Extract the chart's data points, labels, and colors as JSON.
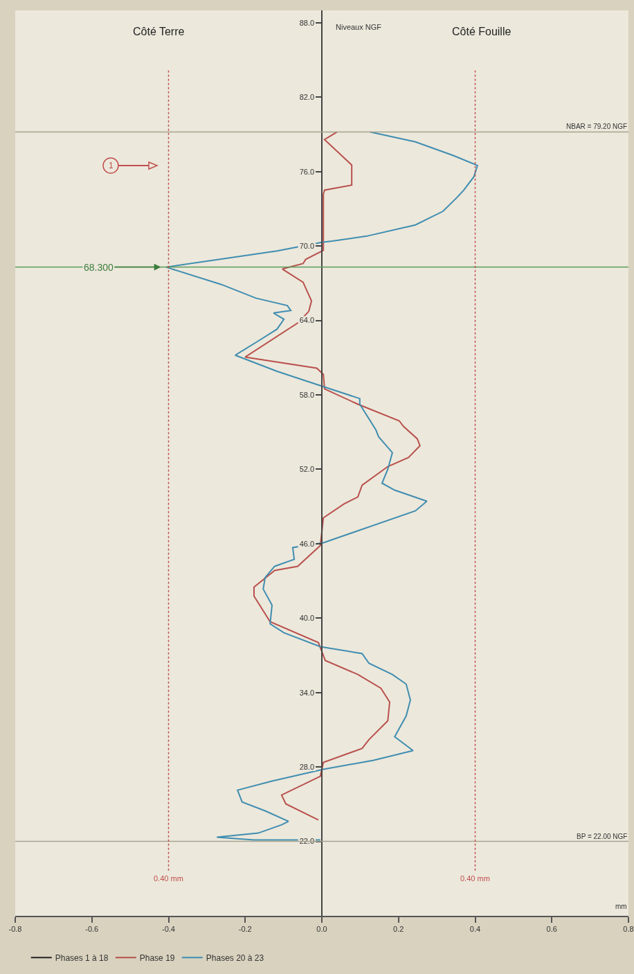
{
  "chart_data": {
    "type": "line",
    "xlabel": "mm",
    "ylabel": "Niveaux NGF",
    "xlim": [
      -0.8,
      0.8
    ],
    "ylim": [
      16,
      89
    ],
    "xticks": [
      -0.8,
      -0.6,
      -0.4,
      -0.2,
      {
        "value": 0,
        "label": "0.0"
      },
      0.2,
      0.4,
      0.6,
      0.8
    ],
    "yticks": [
      {
        "value": 22,
        "label": "22.0"
      },
      {
        "value": 28,
        "label": "28.0"
      },
      {
        "value": 34,
        "label": "34.0"
      },
      {
        "value": 40,
        "label": "40.0"
      },
      {
        "value": 46,
        "label": "46.0"
      },
      {
        "value": 52,
        "label": "52.0"
      },
      {
        "value": 58,
        "label": "58.0"
      },
      {
        "value": 64,
        "label": "64.0"
      },
      {
        "value": 70,
        "label": "70.0"
      },
      {
        "value": 76,
        "label": "76.0"
      },
      {
        "value": 82,
        "label": "82.0"
      },
      {
        "value": 88,
        "label": "88.0"
      }
    ],
    "grid": false,
    "legend": "bottom",
    "marker": "none",
    "line_style": "solid",
    "series": [
      {
        "name": "Phases 1 à 18",
        "color": "#222222"
      },
      {
        "name": "Phase 19",
        "color": "#b9504c",
        "x": [
          0.04,
          0.007,
          0.078,
          0.078,
          0.007,
          0.004,
          0.004,
          -0.042,
          -0.049,
          -0.103,
          -0.049,
          -0.027,
          -0.034,
          -0.061,
          -0.2,
          -0.013,
          0.004,
          0.007,
          0.094,
          0.202,
          0.213,
          0.249,
          0.256,
          0.226,
          0.172,
          0.105,
          0.094,
          0.058,
          0.004,
          -0.004,
          -0.063,
          -0.123,
          -0.177,
          -0.177,
          -0.135,
          -0.009,
          0.009,
          0.094,
          0.154,
          0.177,
          0.172,
          0.123,
          0.105,
          0.004,
          -0.004,
          -0.105,
          -0.094,
          -0.009
        ],
        "values": [
          79.21,
          78.59,
          76.53,
          74.91,
          74.51,
          74.18,
          69.65,
          68.93,
          68.59,
          68.15,
          67.08,
          65.58,
          64.74,
          63.84,
          61.05,
          60.15,
          59.65,
          58.48,
          57.25,
          55.91,
          55.46,
          54.46,
          53.9,
          52.95,
          52.22,
          50.72,
          49.77,
          49.21,
          48.09,
          45.85,
          44.18,
          43.84,
          42.5,
          41.78,
          39.71,
          38.03,
          36.58,
          35.46,
          34.35,
          33.23,
          31.72,
          30.21,
          29.49,
          28.37,
          27.25,
          25.74,
          25.02,
          23.73
        ]
      },
      {
        "name": "Phases 20 à 23",
        "color": "#3f8db0",
        "x": [
          0.126,
          0.244,
          0.343,
          0.406,
          0.397,
          0.37,
          0.352,
          0.316,
          0.244,
          0.117,
          0.027,
          0,
          -0.117,
          -0.406,
          -0.262,
          -0.172,
          -0.09,
          -0.081,
          -0.126,
          -0.099,
          -0.117,
          -0.163,
          -0.226,
          -0.117,
          -0.009,
          0.099,
          0.099,
          0.141,
          0.148,
          0.184,
          0.172,
          0.157,
          0.19,
          0.274,
          0.244,
          0.004,
          -0.076,
          -0.072,
          -0.123,
          -0.148,
          -0.153,
          -0.13,
          -0.135,
          -0.099,
          -0.004,
          0.105,
          0.123,
          0.184,
          0.22,
          0.231,
          0.22,
          0.19,
          0.238,
          0.135,
          0.004,
          -0.13,
          -0.22,
          -0.208,
          -0.148,
          -0.087,
          -0.105,
          -0.166,
          -0.274,
          -0.177,
          -0.004
        ],
        "values": [
          79.2,
          78.4,
          77.3,
          76.5,
          75.6,
          74.5,
          73.9,
          72.8,
          71.7,
          70.8,
          70.4,
          70.3,
          69.6,
          68.3,
          66.9,
          65.8,
          65.2,
          64.8,
          64.6,
          64.1,
          63.3,
          62.4,
          61.2,
          59.9,
          58.8,
          57.7,
          57.25,
          55.18,
          54.63,
          53.34,
          52.0,
          50.88,
          50.32,
          49.43,
          48.65,
          46.08,
          45.69,
          44.74,
          44.18,
          43.28,
          42.34,
          41.05,
          39.54,
          38.82,
          37.7,
          37.14,
          36.36,
          35.46,
          34.68,
          33.4,
          32.11,
          30.44,
          29.32,
          28.54,
          27.81,
          26.86,
          26.13,
          25.18,
          24.46,
          23.62,
          23.34,
          22.67,
          22.34,
          22.11,
          22.11
        ]
      }
    ],
    "ref_lines": [
      {
        "axis": "y",
        "value": 79.2,
        "label": "NBAR = 79.20 NGF",
        "color": "#a8a290",
        "line_style": "solid"
      },
      {
        "axis": "y",
        "value": 22,
        "label": "BP = 22.00 NGF",
        "color": "#a8a290",
        "line_style": "solid"
      },
      {
        "axis": "y",
        "value": 68.3,
        "color": "#5a9a5a",
        "line_style": "solid"
      },
      {
        "axis": "x",
        "value": -0.4,
        "label": "0.40 mm",
        "color": "#c0504d",
        "line_style": "dotted"
      },
      {
        "axis": "x",
        "value": 0.4,
        "label": "0.40 mm",
        "color": "#c0504d",
        "line_style": "dotted"
      }
    ],
    "annotations": [
      "Côté Terre",
      "Côté Fouille",
      {
        "text": "68.300",
        "x": -0.42,
        "y": 68.3
      },
      "1"
    ]
  }
}
